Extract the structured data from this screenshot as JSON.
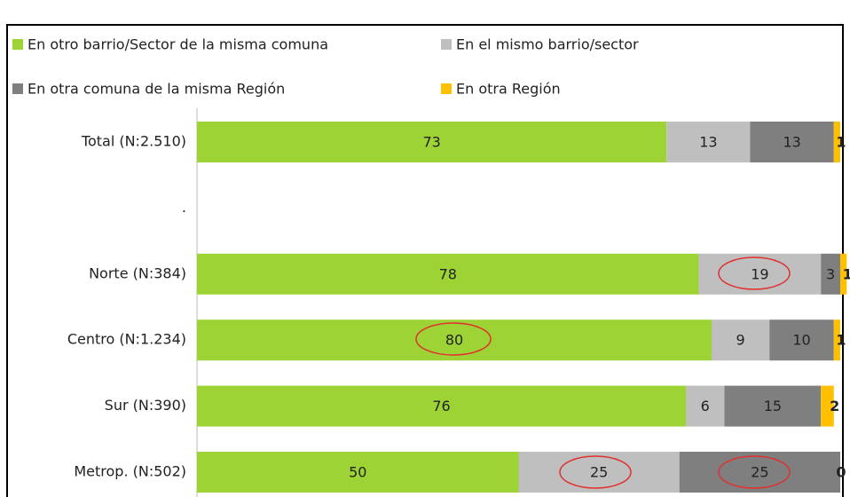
{
  "chart_data": {
    "type": "stacked_bar_horizontal",
    "categories": [
      "Total (N:2.510)",
      ".",
      "Norte (N:384)",
      "Centro (N:1.234)",
      "Sur (N:390)",
      "Metrop. (N:502)"
    ],
    "series": [
      {
        "name": "En otro barrio/Sector de la misma comuna",
        "color": "#9ed336",
        "values": [
          73,
          null,
          78,
          80,
          76,
          50
        ]
      },
      {
        "name": "En el mismo barrio/sector",
        "color": "#bfbfbf",
        "values": [
          13,
          null,
          19,
          9,
          6,
          25
        ]
      },
      {
        "name": "En otra comuna de la misma Región",
        "color": "#7f7f7f",
        "values": [
          13,
          null,
          3,
          10,
          15,
          25
        ]
      },
      {
        "name": "En otra Región",
        "color": "#ffc000",
        "values": [
          1,
          null,
          1,
          1,
          2,
          0
        ]
      }
    ],
    "xlim": [
      0,
      100
    ],
    "legend": "top"
  }
}
